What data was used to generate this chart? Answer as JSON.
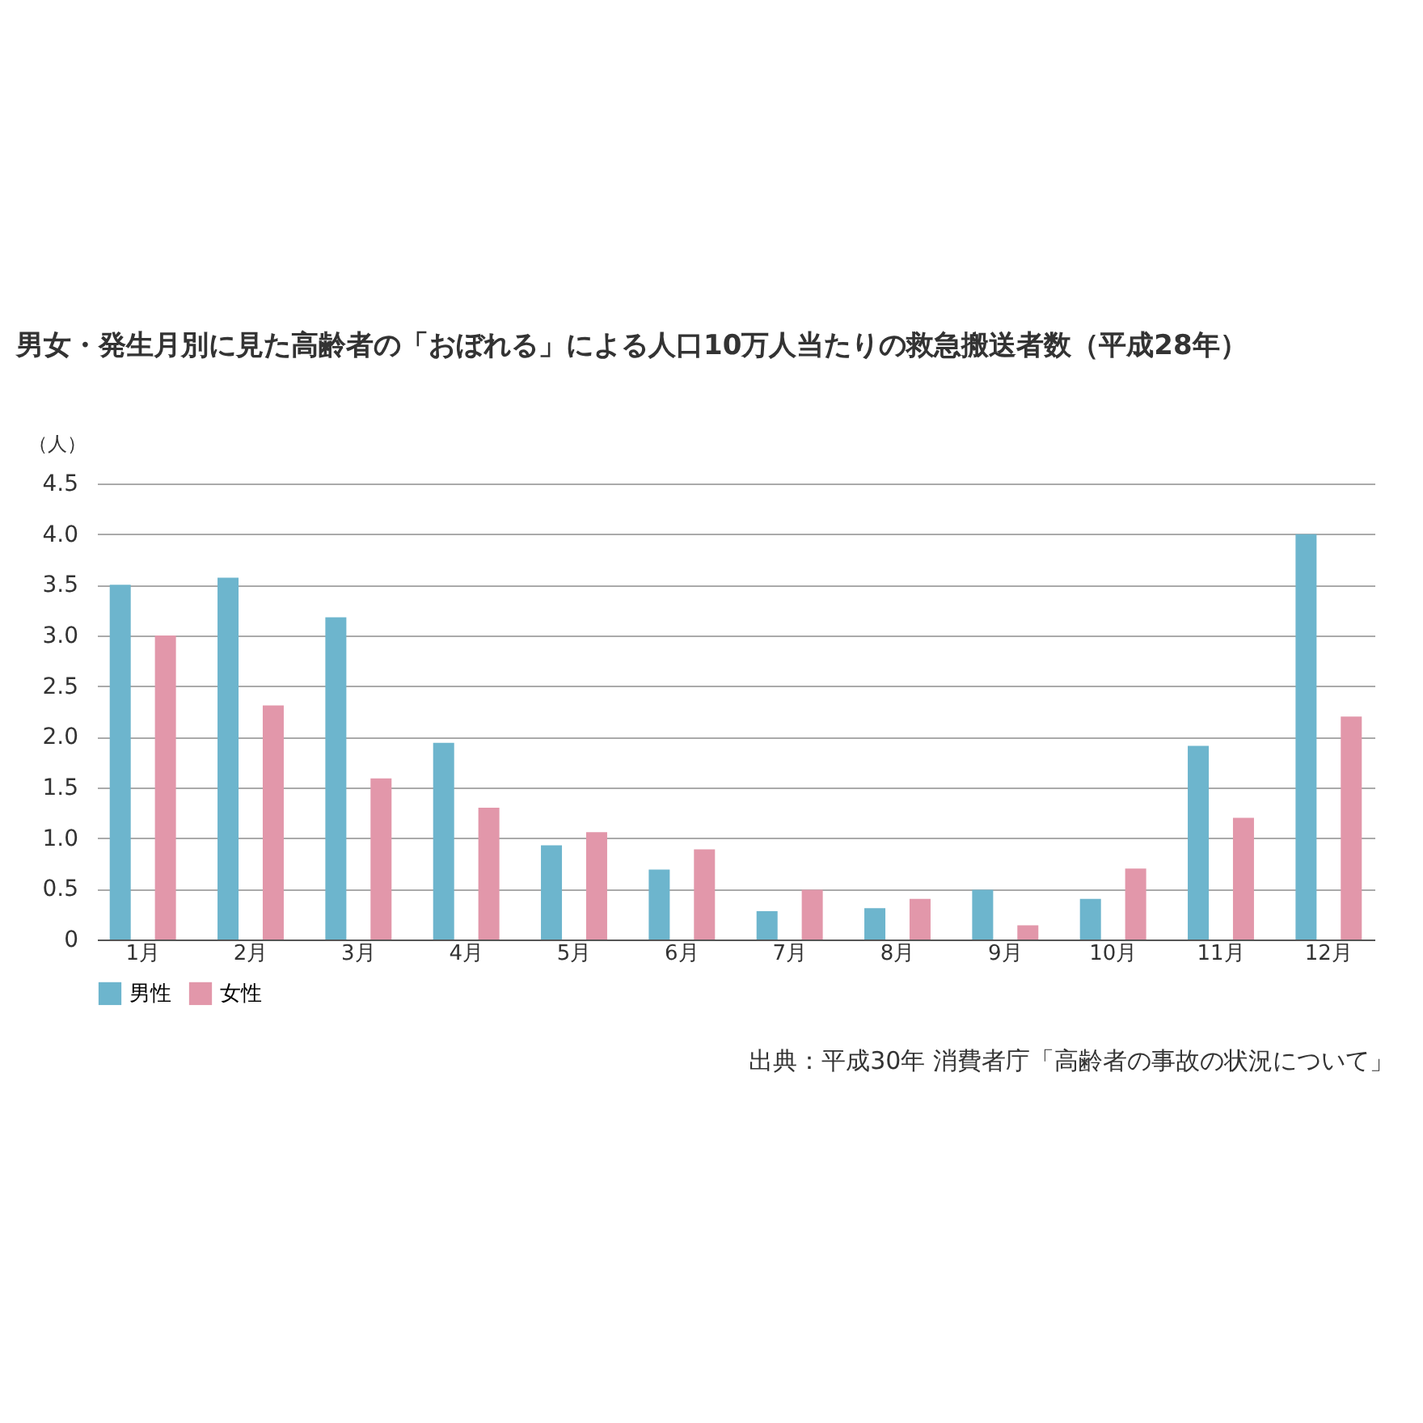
{
  "chart_data": {
    "type": "bar",
    "title": "男女・発生月別に見た高齢者の「おぼれる」による人口10万人当たりの救急搬送者数（平成28年）",
    "ylabel": "（人）",
    "categories": [
      "1月",
      "2月",
      "3月",
      "4月",
      "5月",
      "6月",
      "7月",
      "8月",
      "9月",
      "10月",
      "11月",
      "12月"
    ],
    "series": [
      {
        "name": "男性",
        "color": "#6db5cd",
        "values": [
          3.5,
          3.57,
          3.18,
          1.94,
          0.93,
          0.69,
          0.28,
          0.31,
          0.49,
          0.4,
          1.91,
          4.0
        ]
      },
      {
        "name": "女性",
        "color": "#e297aa",
        "values": [
          3.0,
          2.31,
          1.59,
          1.3,
          1.06,
          0.89,
          0.49,
          0.4,
          0.14,
          0.7,
          1.2,
          2.2
        ]
      }
    ],
    "ylim": [
      0,
      4.5
    ],
    "yticks": [
      0,
      {
        "value": 0.5,
        "label": "0.5"
      },
      {
        "value": 1,
        "label": "1.0"
      },
      {
        "value": 1.5,
        "label": "1.5"
      },
      {
        "value": 2,
        "label": "2.0"
      },
      {
        "value": 2.5,
        "label": "2.5"
      },
      {
        "value": 3,
        "label": "3.0"
      },
      {
        "value": 3.5,
        "label": "3.5"
      },
      {
        "value": 4,
        "label": "4.0"
      },
      {
        "value": 4.5,
        "label": "4.5"
      }
    ],
    "grid": "y",
    "legend": "bottom left",
    "annotations": [
      "出典：平成30年 消費者庁「高齢者の事故の状況について」"
    ]
  }
}
